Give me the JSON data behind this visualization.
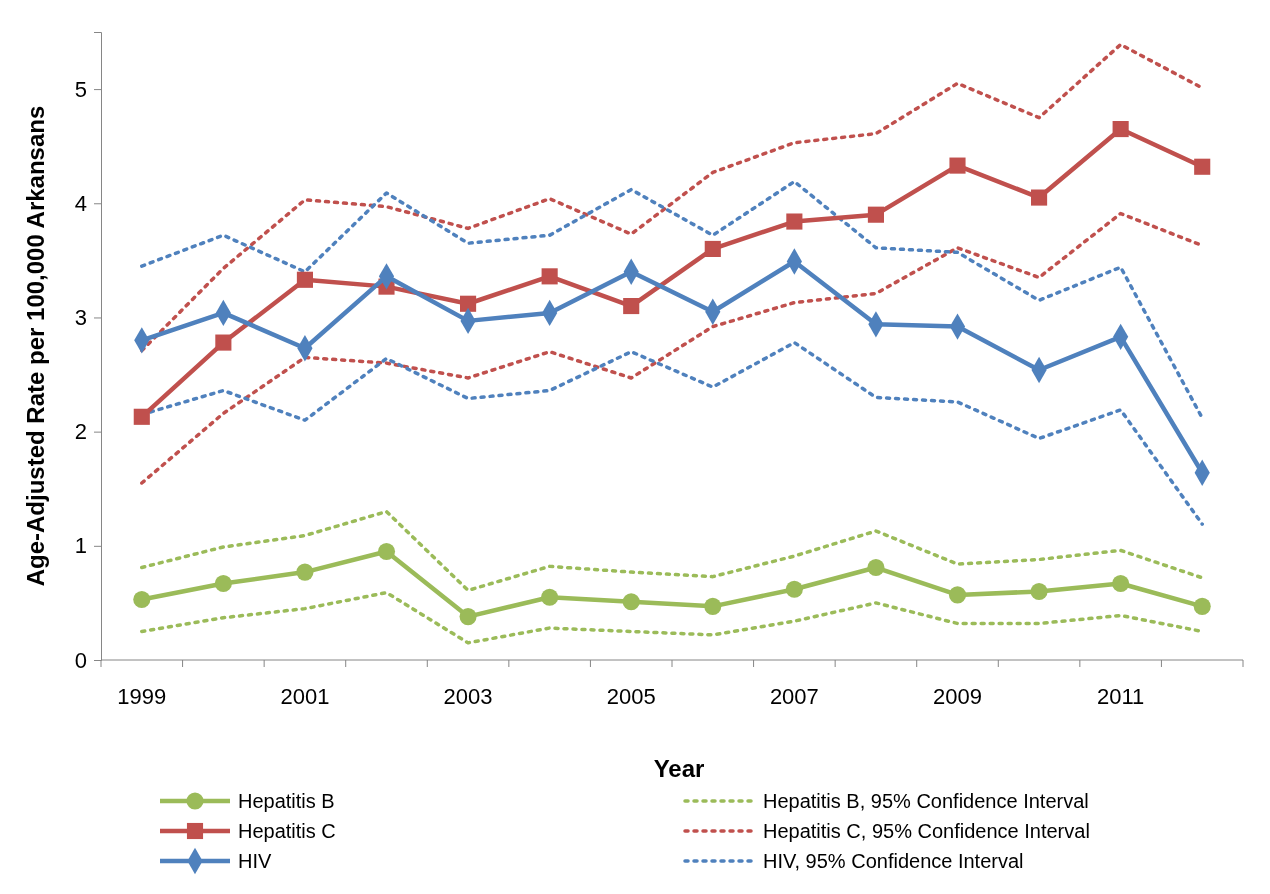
{
  "chart_data": {
    "type": "line",
    "xlabel": "Year",
    "ylabel": "Age-Adjusted Rate per 100,000 Arkansans",
    "categories": [
      "1999",
      null,
      "2001",
      null,
      "2003",
      null,
      "2005",
      null,
      "2007",
      null,
      "2009",
      null,
      "2011",
      null
    ],
    "ylim": [
      0,
      5.5
    ],
    "yticks": [
      0,
      1,
      2,
      3,
      4,
      5
    ],
    "grid": false,
    "legend": "bottom",
    "series": [
      {
        "name": "Hepatitis B",
        "color": "#9bbb59",
        "marker": "circle",
        "line_style": "solid",
        "values": [
          0.53,
          0.67,
          0.77,
          0.95,
          0.38,
          0.55,
          0.51,
          0.47,
          0.62,
          0.81,
          0.57,
          0.6,
          0.67,
          0.47
        ]
      },
      {
        "name": "Hepatitis C",
        "color": "#c0504d",
        "marker": "square",
        "line_style": "solid",
        "values": [
          2.13,
          2.78,
          3.33,
          3.27,
          3.12,
          3.36,
          3.1,
          3.6,
          3.84,
          3.9,
          4.33,
          4.05,
          4.65,
          4.32
        ]
      },
      {
        "name": "HIV",
        "color": "#4f81bd",
        "marker": "diamond",
        "line_style": "solid",
        "values": [
          2.8,
          3.04,
          2.73,
          3.36,
          2.97,
          3.04,
          3.4,
          3.05,
          3.49,
          2.94,
          2.92,
          2.54,
          2.83,
          1.64
        ]
      },
      {
        "name": "Hepatitis B, 95% Confidence Interval",
        "color": "#9bbb59",
        "marker": "none",
        "line_style": "dotted",
        "values": [
          0.81,
          0.99,
          1.09,
          1.3,
          0.61,
          0.82,
          0.77,
          0.73,
          0.91,
          1.13,
          0.84,
          0.88,
          0.96,
          0.72
        ]
      },
      {
        "color": "#9bbb59",
        "marker": "none",
        "line_style": "dotted",
        "values": [
          0.25,
          0.37,
          0.45,
          0.59,
          0.15,
          0.28,
          0.25,
          0.22,
          0.34,
          0.5,
          0.32,
          0.32,
          0.39,
          0.25
        ]
      },
      {
        "name": "Hepatitis C, 95% Confidence Interval",
        "color": "#c0504d",
        "marker": "none",
        "line_style": "dotted",
        "values": [
          2.71,
          3.43,
          4.03,
          3.97,
          3.78,
          4.04,
          3.73,
          4.27,
          4.53,
          4.61,
          5.05,
          4.75,
          5.39,
          5.01
        ]
      },
      {
        "color": "#c0504d",
        "marker": "none",
        "line_style": "dotted",
        "values": [
          1.55,
          2.16,
          2.65,
          2.6,
          2.47,
          2.7,
          2.47,
          2.92,
          3.13,
          3.21,
          3.61,
          3.35,
          3.91,
          3.63
        ]
      },
      {
        "name": "HIV, 95% Confidence Interval",
        "color": "#4f81bd",
        "marker": "none",
        "line_style": "dotted",
        "values": [
          3.45,
          3.72,
          3.4,
          4.09,
          3.65,
          3.72,
          4.12,
          3.72,
          4.19,
          3.61,
          3.57,
          3.15,
          3.44,
          2.12
        ]
      },
      {
        "color": "#4f81bd",
        "marker": "none",
        "line_style": "dotted",
        "values": [
          2.15,
          2.36,
          2.1,
          2.64,
          2.29,
          2.36,
          2.7,
          2.39,
          2.78,
          2.3,
          2.26,
          1.94,
          2.19,
          1.19
        ]
      }
    ]
  }
}
